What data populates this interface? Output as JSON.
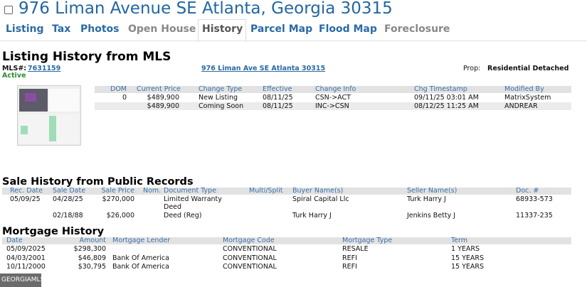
{
  "header": {
    "title": "976 Liman Avenue SE Atlanta, Georgia 30315"
  },
  "tabs": [
    {
      "label": "Listing",
      "state": "link"
    },
    {
      "label": "Tax",
      "state": "link"
    },
    {
      "label": "Photos",
      "state": "link"
    },
    {
      "label": "Open House",
      "state": "disabled"
    },
    {
      "label": "History",
      "state": "active"
    },
    {
      "label": "Parcel Map",
      "state": "link"
    },
    {
      "label": "Flood Map",
      "state": "link"
    },
    {
      "label": "Foreclosure",
      "state": "disabled"
    }
  ],
  "listing_history": {
    "title": "Listing History from MLS",
    "mls_label": "MLS#:",
    "mls_number": "7631159",
    "status": "Active",
    "status_color": "#2e8b2e",
    "address_link": "976 Liman Ave SE Atlanta 30315",
    "prop_label": "Prop:",
    "prop_value": "Residential Detached",
    "columns": [
      "DOM",
      "Current Price",
      "Change Type",
      "Effective",
      "Change Info",
      "Chg Timestamp",
      "Modified By"
    ],
    "rows": [
      [
        "0",
        "$489,900",
        "New Listing",
        "08/11/25",
        "CSN->ACT",
        "09/11/25 03:01 AM",
        "MatrixSystem"
      ],
      [
        "",
        "$489,900",
        "Coming Soon",
        "08/11/25",
        "INC->CSN",
        "08/12/25 11:25 AM",
        "ANDREAR"
      ]
    ]
  },
  "sale_history": {
    "title": "Sale History from Public Records",
    "columns": [
      "Rec. Date",
      "Sale Date",
      "Sale Price",
      "Nom.",
      "Document Type",
      "Multi/Split",
      "Buyer Name(s)",
      "Seller Name(s)",
      "Doc. #"
    ],
    "rows": [
      [
        "05/09/25",
        "04/28/25",
        "$270,000",
        "",
        "Limited Warranty Deed",
        "",
        "Spiral Capital Llc",
        "Turk Harry J",
        "68933-573"
      ],
      [
        "",
        "02/18/88",
        "$26,000",
        "",
        "Deed (Reg)",
        "",
        "Turk Harry J",
        "Jenkins Betty J",
        "11337-235"
      ]
    ]
  },
  "mortgage_history": {
    "title": "Mortgage History",
    "columns": [
      "Date",
      "Amount",
      "Mortgage Lender",
      "Mortgage Code",
      "Mortgage Type",
      "Term"
    ],
    "rows": [
      [
        "05/09/2025",
        "$298,300",
        "",
        "CONVENTIONAL",
        "RESALE",
        "1 YEARS"
      ],
      [
        "04/03/2001",
        "$46,809",
        "Bank Of America",
        "CONVENTIONAL",
        "REFI",
        "15 YEARS"
      ],
      [
        "10/11/2000",
        "$30,795",
        "Bank Of America",
        "CONVENTIONAL",
        "REFI",
        "15 YEARS"
      ]
    ]
  },
  "footer": {
    "logo": "GEORGIAMLS"
  }
}
